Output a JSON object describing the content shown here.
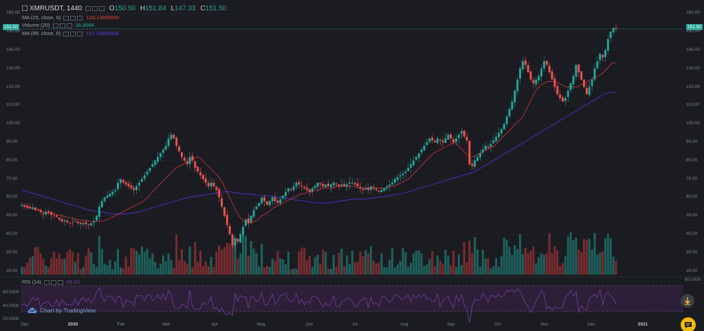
{
  "header": {
    "symbol": "XMRUSDT, 1440",
    "open_label": "O",
    "open": "150.50",
    "high_label": "H",
    "high": "151.84",
    "low_label": "L",
    "low": "147.33",
    "close_label": "C",
    "close": "151.50"
  },
  "indicators": [
    {
      "name": "MA (25, close, 0)",
      "value": "133.13880000",
      "color": "#e0433d"
    },
    {
      "name": "Volume (20)",
      "value": "38.866K",
      "color": "#26a69a"
    },
    {
      "name": "MA (99, close, 0)",
      "value": "117.16880808",
      "color": "#5a3fd6"
    }
  ],
  "rsi": {
    "name": "RSI (14)",
    "value": "66.03",
    "upper": "80.0000",
    "middle": "60.0000",
    "lower": "20.0000",
    "color": "#7b3fa8"
  },
  "last_price_tag": "151.50",
  "watermark": "Chart by TradingView",
  "colors": {
    "up": "#26a69a",
    "down": "#ef5350",
    "ma25": "#c7323a",
    "ma99": "#4a2fc4",
    "bg": "#1b1c21",
    "rsi_band": "#2c1f37"
  },
  "icons": {
    "download": "download-arrow-icon",
    "chat": "chat-bubble-icon",
    "logo": "tradingview-cloud-icon"
  },
  "chart_data": {
    "type": "candlestick",
    "title": "XMRUSDT, 1440",
    "y_ticks": [
      "160.00",
      "150.00",
      "140.00",
      "130.00",
      "120.00",
      "110.00",
      "100.00",
      "90.00",
      "80.00",
      "70.00",
      "60.00",
      "50.00",
      "40.00",
      "30.00",
      "20.00"
    ],
    "ylim": [
      18,
      162
    ],
    "x_ticks": [
      "Dec",
      "2020",
      "Feb",
      "Mar",
      "Apr",
      "May",
      "Jun",
      "Jul",
      "Aug",
      "Sep",
      "Oct",
      "Nov",
      "Dec",
      "2021",
      "20"
    ],
    "bold_x_ticks": [
      "2020",
      "2021"
    ],
    "rsi_ticks": [
      "80.0000",
      "60.0000",
      "40.0000",
      "20.0000"
    ],
    "closes": [
      56,
      55,
      54.5,
      54,
      54.5,
      53,
      53.5,
      52,
      51,
      52,
      51.5,
      50.5,
      50,
      49.5,
      48,
      47,
      47.5,
      46.5,
      46,
      46.5,
      47,
      46,
      45.5,
      46,
      45.5,
      45,
      46,
      47,
      50,
      55,
      58,
      60,
      61,
      62,
      63,
      64,
      68,
      70,
      68,
      67,
      66,
      65,
      64,
      66,
      68,
      70,
      72,
      74,
      76,
      78,
      80,
      82,
      84,
      86,
      88,
      92,
      94,
      92,
      88,
      85,
      82,
      80,
      78,
      82,
      80,
      76,
      74,
      72,
      70,
      68,
      66,
      68,
      66,
      64,
      60,
      55,
      50,
      45,
      40,
      34,
      38,
      36,
      40,
      44,
      48,
      46,
      50,
      53,
      55,
      57,
      60,
      58,
      56,
      58,
      60,
      58,
      57,
      59,
      61,
      63,
      65,
      64,
      66,
      68,
      67,
      66,
      65,
      64,
      63,
      65,
      66,
      68,
      67,
      66,
      67,
      66,
      67,
      68,
      67,
      66,
      67,
      66,
      67,
      68,
      68,
      67,
      66,
      65,
      64,
      65,
      64,
      66,
      65,
      64,
      63,
      64,
      65,
      66,
      67,
      68,
      70,
      71,
      72,
      73,
      74,
      76,
      78,
      80,
      82,
      84,
      86,
      88,
      90,
      92,
      91,
      90,
      92,
      91,
      90,
      92,
      94,
      92,
      90,
      92,
      94,
      96,
      93,
      91,
      78,
      77,
      80,
      82,
      84,
      86,
      88,
      87,
      89,
      91,
      93,
      95,
      97,
      100,
      104,
      108,
      112,
      118,
      124,
      130,
      134,
      132,
      128,
      124,
      122,
      124,
      126,
      130,
      134,
      132,
      128,
      124,
      120,
      116,
      114,
      112,
      114,
      118,
      122,
      126,
      132,
      128,
      124,
      120,
      116,
      120,
      124,
      130,
      134,
      138,
      136,
      140,
      146,
      150,
      152,
      151.5
    ],
    "ma25": [
      55.5,
      55,
      54.5,
      54,
      53.5,
      53,
      52.5,
      52,
      51.5,
      51,
      50.5,
      50,
      49.5,
      49,
      48.5,
      48,
      48,
      47.5,
      47.5,
      47,
      47,
      47,
      47,
      47.5,
      48,
      49,
      50,
      51,
      52,
      53,
      54,
      55,
      56,
      57,
      58,
      60,
      62,
      64,
      66,
      68,
      70,
      72,
      74,
      76,
      77,
      78,
      79,
      80,
      81,
      82,
      81,
      79,
      77,
      75,
      73,
      71,
      68,
      64,
      60,
      56,
      52,
      49,
      47,
      46,
      46,
      47,
      48,
      50,
      51,
      52,
      54,
      55,
      56,
      57,
      58,
      59,
      60,
      61,
      62,
      62,
      63,
      63,
      64,
      64,
      65,
      65,
      65,
      65,
      66,
      66,
      66,
      66,
      66,
      66,
      65,
      65,
      65,
      65,
      65,
      65,
      65,
      65,
      65,
      66,
      66,
      67,
      68,
      69,
      70,
      72,
      74,
      76,
      78,
      80,
      82,
      84,
      85,
      86,
      87,
      88,
      89,
      90,
      88,
      86,
      84,
      82,
      82,
      83,
      84,
      85,
      86,
      87,
      88,
      90,
      92,
      94,
      96,
      98,
      100,
      102,
      104,
      108,
      112,
      116,
      119,
      121,
      122,
      123,
      123,
      123,
      122,
      121,
      120,
      120,
      120,
      120,
      121,
      122,
      123,
      124,
      125,
      126,
      127,
      129,
      131,
      133,
      133.1
    ],
    "ma99": [
      64,
      63,
      62,
      61,
      60,
      59,
      58,
      57,
      56,
      55,
      54,
      53,
      52.5,
      52,
      51.5,
      51,
      51,
      51,
      51.5,
      52,
      53,
      54,
      55,
      56,
      57,
      58,
      59,
      60,
      60.5,
      61,
      61.5,
      62,
      62.5,
      63,
      63,
      62.5,
      62,
      62,
      61.5,
      61,
      61,
      60.5,
      60,
      59.5,
      59,
      58.5,
      58,
      57.5,
      57,
      57,
      57,
      57.5,
      58,
      58.5,
      59,
      59,
      59,
      59.5,
      60,
      60.5,
      61,
      61.5,
      62,
      63,
      64,
      65,
      66,
      67,
      68,
      69,
      70,
      71,
      72,
      73,
      74,
      76,
      78,
      80,
      82,
      84,
      86,
      88,
      90,
      92,
      94,
      96,
      98,
      100,
      102,
      104,
      106,
      108,
      110,
      112,
      114,
      116,
      117,
      117.2
    ],
    "volume_note": "volume bars shown below price, scaled independently"
  }
}
